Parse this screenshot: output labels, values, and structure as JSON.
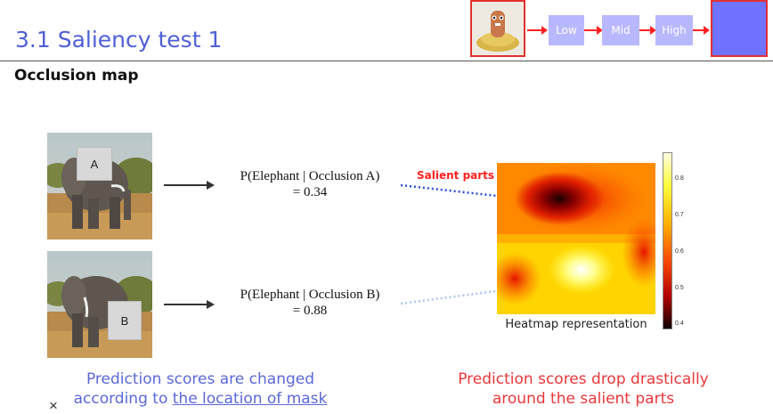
{
  "header": {
    "title": "3.1 Saliency test 1",
    "subtitle": "Occlusion map"
  },
  "pipeline": {
    "stages": [
      "Low",
      "Mid",
      "High"
    ],
    "arrow_color": "#ff2222",
    "box_color": "#b8b8ff",
    "output_color": "#6f73ff",
    "frame_color": "#e03030"
  },
  "rows": [
    {
      "occlusion_label": "A",
      "equation_line1": "P(Elephant | Occlusion A)",
      "equation_line2": "=  0.34"
    },
    {
      "occlusion_label": "B",
      "equation_line1": "P(Elephant | Occlusion B)",
      "equation_line2": "=  0.88"
    }
  ],
  "heatmap": {
    "annotation": "Salient parts",
    "label": "Heatmap representation",
    "colorbar_ticks": [
      "0.8",
      "0.7",
      "0.6",
      "0.5",
      "0.4"
    ]
  },
  "captions": {
    "left_line1": "Prediction scores are changed",
    "left_line2_prefix": "according to ",
    "left_line2_link": "the location of mask",
    "right_line1": "Prediction scores drop drastically",
    "right_line2": "around the salient parts"
  },
  "controls": {
    "close_symbol": "×"
  }
}
